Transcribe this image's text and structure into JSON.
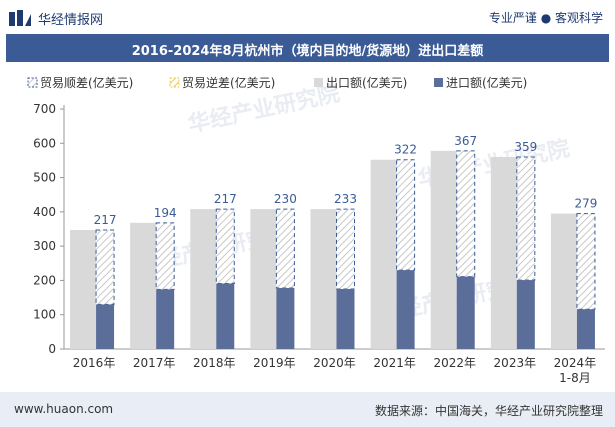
{
  "header": {
    "brand": "华经情报网",
    "tagline": "专业严谨 ● 客观科学"
  },
  "footer": {
    "website": "www.huaon.com",
    "source": "数据来源：中国海关，华经产业研究院整理"
  },
  "watermark": "华经产业研究院",
  "chart_data": {
    "type": "bar",
    "title": "2016-2024年8月杭州市（境内目的地/货源地）进出口差额",
    "categories": [
      "2016年",
      "2017年",
      "2018年",
      "2019年",
      "2020年",
      "2021年",
      "2022年",
      "2023年",
      "2024年\n1-8月"
    ],
    "category_lines": [
      [
        "2016年"
      ],
      [
        "2017年"
      ],
      [
        "2018年"
      ],
      [
        "2019年"
      ],
      [
        "2020年"
      ],
      [
        "2021年"
      ],
      [
        "2022年"
      ],
      [
        "2023年"
      ],
      [
        "2024年",
        "1-8月"
      ]
    ],
    "series": [
      {
        "name": "贸易顺差(亿美元)",
        "values": [
          217,
          194,
          217,
          230,
          233,
          322,
          367,
          359,
          279
        ],
        "color": "#ffffff",
        "border": "#3a5b96"
      },
      {
        "name": "贸易逆差(亿美元)",
        "values": [
          0,
          0,
          0,
          0,
          0,
          0,
          0,
          0,
          0
        ],
        "color": "#ffffff",
        "border": "#f2c94c"
      },
      {
        "name": "出口额(亿美元)",
        "values": [
          347,
          368,
          408,
          408,
          408,
          552,
          578,
          560,
          395
        ],
        "color": "#d9d9d9"
      },
      {
        "name": "进口额(亿美元)",
        "values": [
          130,
          174,
          191,
          178,
          175,
          230,
          211,
          201,
          116
        ],
        "color": "#5b6e99"
      }
    ],
    "labels": [
      "217",
      "194",
      "217",
      "230",
      "233",
      "322",
      "367",
      "359",
      "279"
    ],
    "ylim": [
      0,
      700
    ],
    "yticks": [
      0,
      100,
      200,
      300,
      400,
      500,
      600,
      700
    ],
    "legend_position": "top",
    "grid": false
  }
}
